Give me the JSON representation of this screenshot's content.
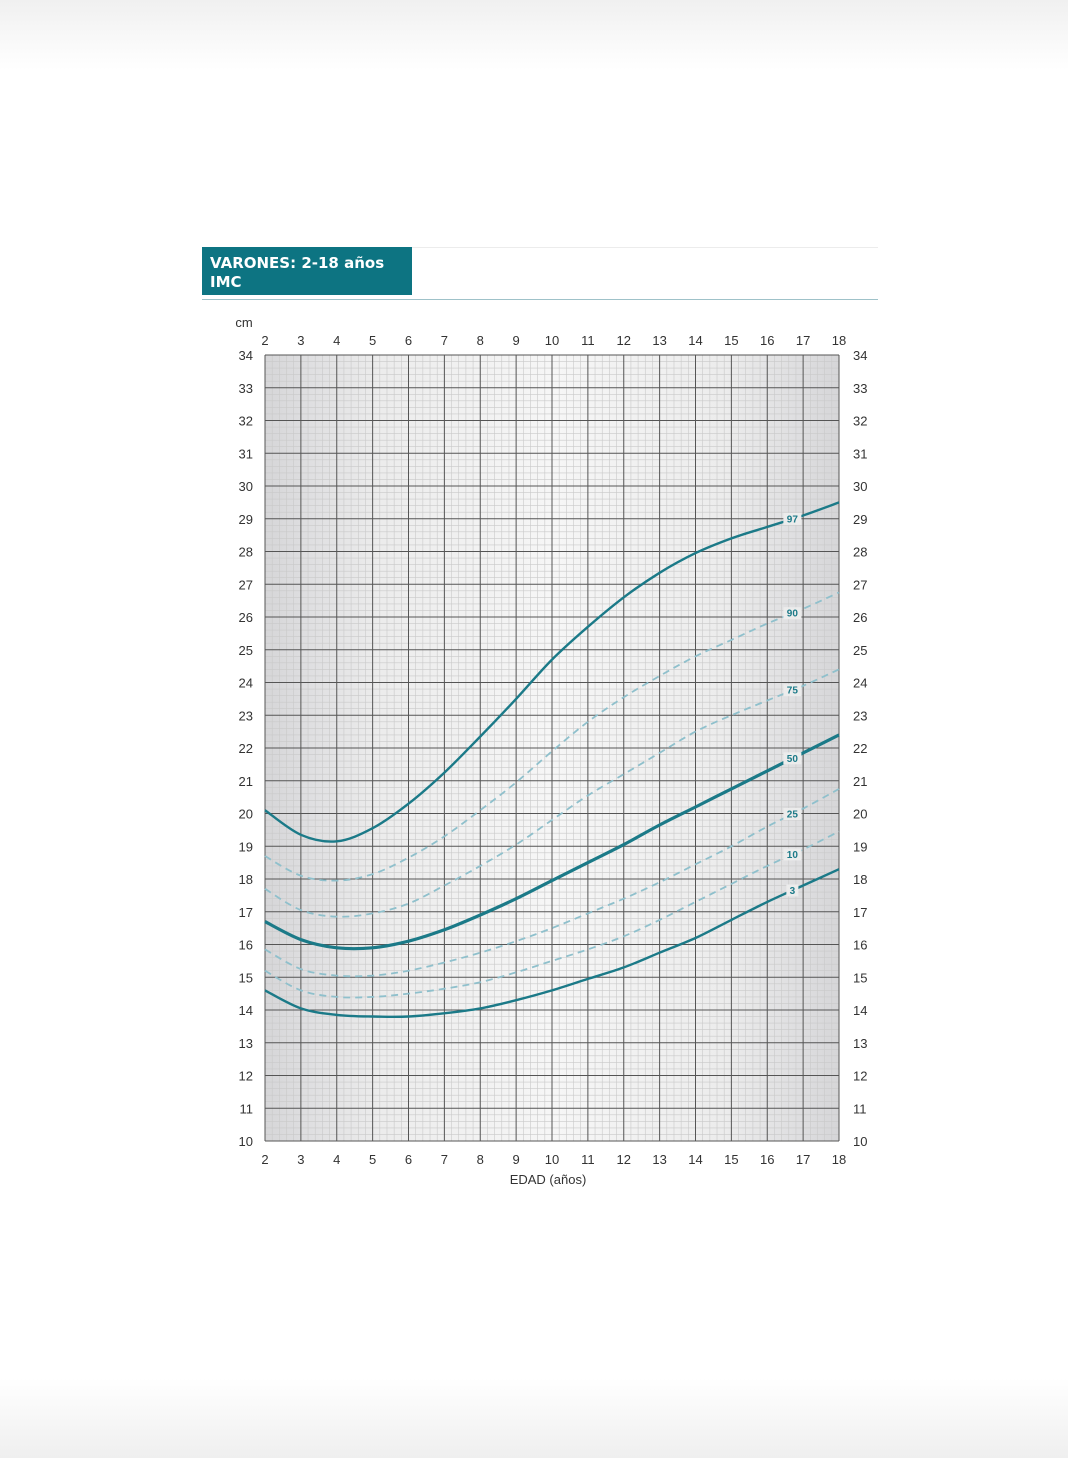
{
  "header": {
    "title_line1": "VARONES: 2-18 años",
    "title_line2": "IMC"
  },
  "colors": {
    "header_bg": "#0d7482",
    "curve_solid": "#1b7a88",
    "curve_dashed": "#8fc0cc",
    "grid_minor": "#c9c9c9",
    "grid_major": "#555555"
  },
  "chart_data": {
    "type": "line",
    "title": "VARONES: 2-18 años IMC",
    "xlabel": "EDAD (años)",
    "ylabel": "cm",
    "xlim": [
      2,
      18
    ],
    "ylim": [
      10,
      34
    ],
    "x_ticks": [
      "2",
      "3",
      "4",
      "5",
      "6",
      "7",
      "8",
      "9",
      "10",
      "11",
      "12",
      "13",
      "14",
      "15",
      "16",
      "17",
      "18"
    ],
    "y_ticks": [
      "10",
      "11",
      "12",
      "13",
      "14",
      "15",
      "16",
      "17",
      "18",
      "19",
      "20",
      "21",
      "22",
      "23",
      "24",
      "25",
      "26",
      "27",
      "28",
      "29",
      "30",
      "31",
      "32",
      "33",
      "34"
    ],
    "grid": true,
    "series": [
      {
        "name": "97",
        "style": "solid",
        "x": [
          2,
          3,
          4,
          5,
          6,
          7,
          8,
          9,
          10,
          11,
          12,
          13,
          14,
          15,
          16,
          17,
          18
        ],
        "y": [
          20.1,
          19.35,
          19.15,
          19.55,
          20.3,
          21.25,
          22.35,
          23.5,
          24.7,
          25.7,
          26.6,
          27.35,
          27.95,
          28.4,
          28.75,
          29.1,
          29.5
        ]
      },
      {
        "name": "90",
        "style": "dashed",
        "x": [
          2,
          3,
          4,
          5,
          6,
          7,
          8,
          9,
          10,
          11,
          12,
          13,
          14,
          15,
          16,
          17,
          18
        ],
        "y": [
          18.7,
          18.1,
          17.95,
          18.15,
          18.65,
          19.3,
          20.1,
          20.95,
          21.9,
          22.8,
          23.55,
          24.2,
          24.8,
          25.3,
          25.8,
          26.25,
          26.75
        ]
      },
      {
        "name": "75",
        "style": "dashed",
        "x": [
          2,
          3,
          4,
          5,
          6,
          7,
          8,
          9,
          10,
          11,
          12,
          13,
          14,
          15,
          16,
          17,
          18
        ],
        "y": [
          17.7,
          17.05,
          16.85,
          16.95,
          17.25,
          17.8,
          18.4,
          19.05,
          19.8,
          20.55,
          21.2,
          21.85,
          22.5,
          23.0,
          23.45,
          23.9,
          24.4
        ]
      },
      {
        "name": "50",
        "style": "solid-bold",
        "x": [
          2,
          3,
          4,
          5,
          6,
          7,
          8,
          9,
          10,
          11,
          12,
          13,
          14,
          15,
          16,
          17,
          18
        ],
        "y": [
          16.7,
          16.15,
          15.9,
          15.9,
          16.1,
          16.45,
          16.9,
          17.4,
          17.95,
          18.5,
          19.05,
          19.65,
          20.2,
          20.75,
          21.3,
          21.85,
          22.4
        ]
      },
      {
        "name": "25",
        "style": "dashed",
        "x": [
          2,
          3,
          4,
          5,
          6,
          7,
          8,
          9,
          10,
          11,
          12,
          13,
          14,
          15,
          16,
          17,
          18
        ],
        "y": [
          15.85,
          15.25,
          15.05,
          15.05,
          15.2,
          15.45,
          15.75,
          16.1,
          16.5,
          16.95,
          17.4,
          17.9,
          18.45,
          19.0,
          19.6,
          20.15,
          20.75
        ]
      },
      {
        "name": "10",
        "style": "dashed",
        "x": [
          2,
          3,
          4,
          5,
          6,
          7,
          8,
          9,
          10,
          11,
          12,
          13,
          14,
          15,
          16,
          17,
          18
        ],
        "y": [
          15.2,
          14.6,
          14.4,
          14.4,
          14.5,
          14.65,
          14.85,
          15.15,
          15.5,
          15.85,
          16.25,
          16.75,
          17.3,
          17.85,
          18.4,
          18.9,
          19.45
        ]
      },
      {
        "name": "3",
        "style": "solid",
        "x": [
          2,
          3,
          4,
          5,
          6,
          7,
          8,
          9,
          10,
          11,
          12,
          13,
          14,
          15,
          16,
          17,
          18
        ],
        "y": [
          14.6,
          14.05,
          13.85,
          13.8,
          13.8,
          13.9,
          14.05,
          14.3,
          14.6,
          14.95,
          15.3,
          15.75,
          16.2,
          16.75,
          17.3,
          17.8,
          18.3
        ]
      }
    ]
  }
}
